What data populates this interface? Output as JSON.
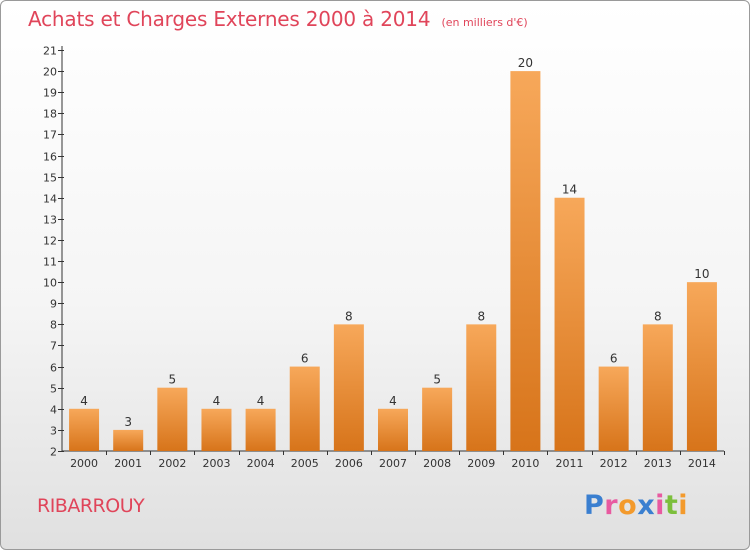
{
  "title": "Achats et Charges Externes 2000 à 2014",
  "subtitle": "(en milliers d'€)",
  "locality": "RIBARROUY",
  "brand": {
    "letters": [
      "P",
      "r",
      "o",
      "x",
      "i",
      "t",
      "i"
    ],
    "colors": [
      "#3a7fd0",
      "#e85aa0",
      "#f39a2c",
      "#3a7fd0",
      "#e85aa0",
      "#7cbf3c",
      "#f39a2c"
    ]
  },
  "colors": {
    "bar_light": "#f7a85a",
    "bar_dark": "#d7741a",
    "title": "#e0455a",
    "axis": "#333333"
  },
  "chart_data": {
    "type": "bar",
    "title": "Achats et Charges Externes 2000 à 2014",
    "subtitle": "(en milliers d'€)",
    "xlabel": "",
    "ylabel": "",
    "ylim": [
      2,
      21
    ],
    "yticks": [
      "2",
      "3",
      "4",
      "5",
      "6",
      "7",
      "8",
      "9",
      "10",
      "11",
      "12",
      "13",
      "14",
      "15",
      "16",
      "17",
      "18",
      "19",
      "20",
      "21"
    ],
    "categories": [
      "2000",
      "2001",
      "2002",
      "2003",
      "2004",
      "2005",
      "2006",
      "2007",
      "2008",
      "2009",
      "2010",
      "2011",
      "2012",
      "2013",
      "2014"
    ],
    "values": [
      4,
      3,
      5,
      4,
      4,
      6,
      8,
      4,
      5,
      8,
      20,
      14,
      6,
      8,
      10
    ],
    "grid": false,
    "legend": "none"
  }
}
